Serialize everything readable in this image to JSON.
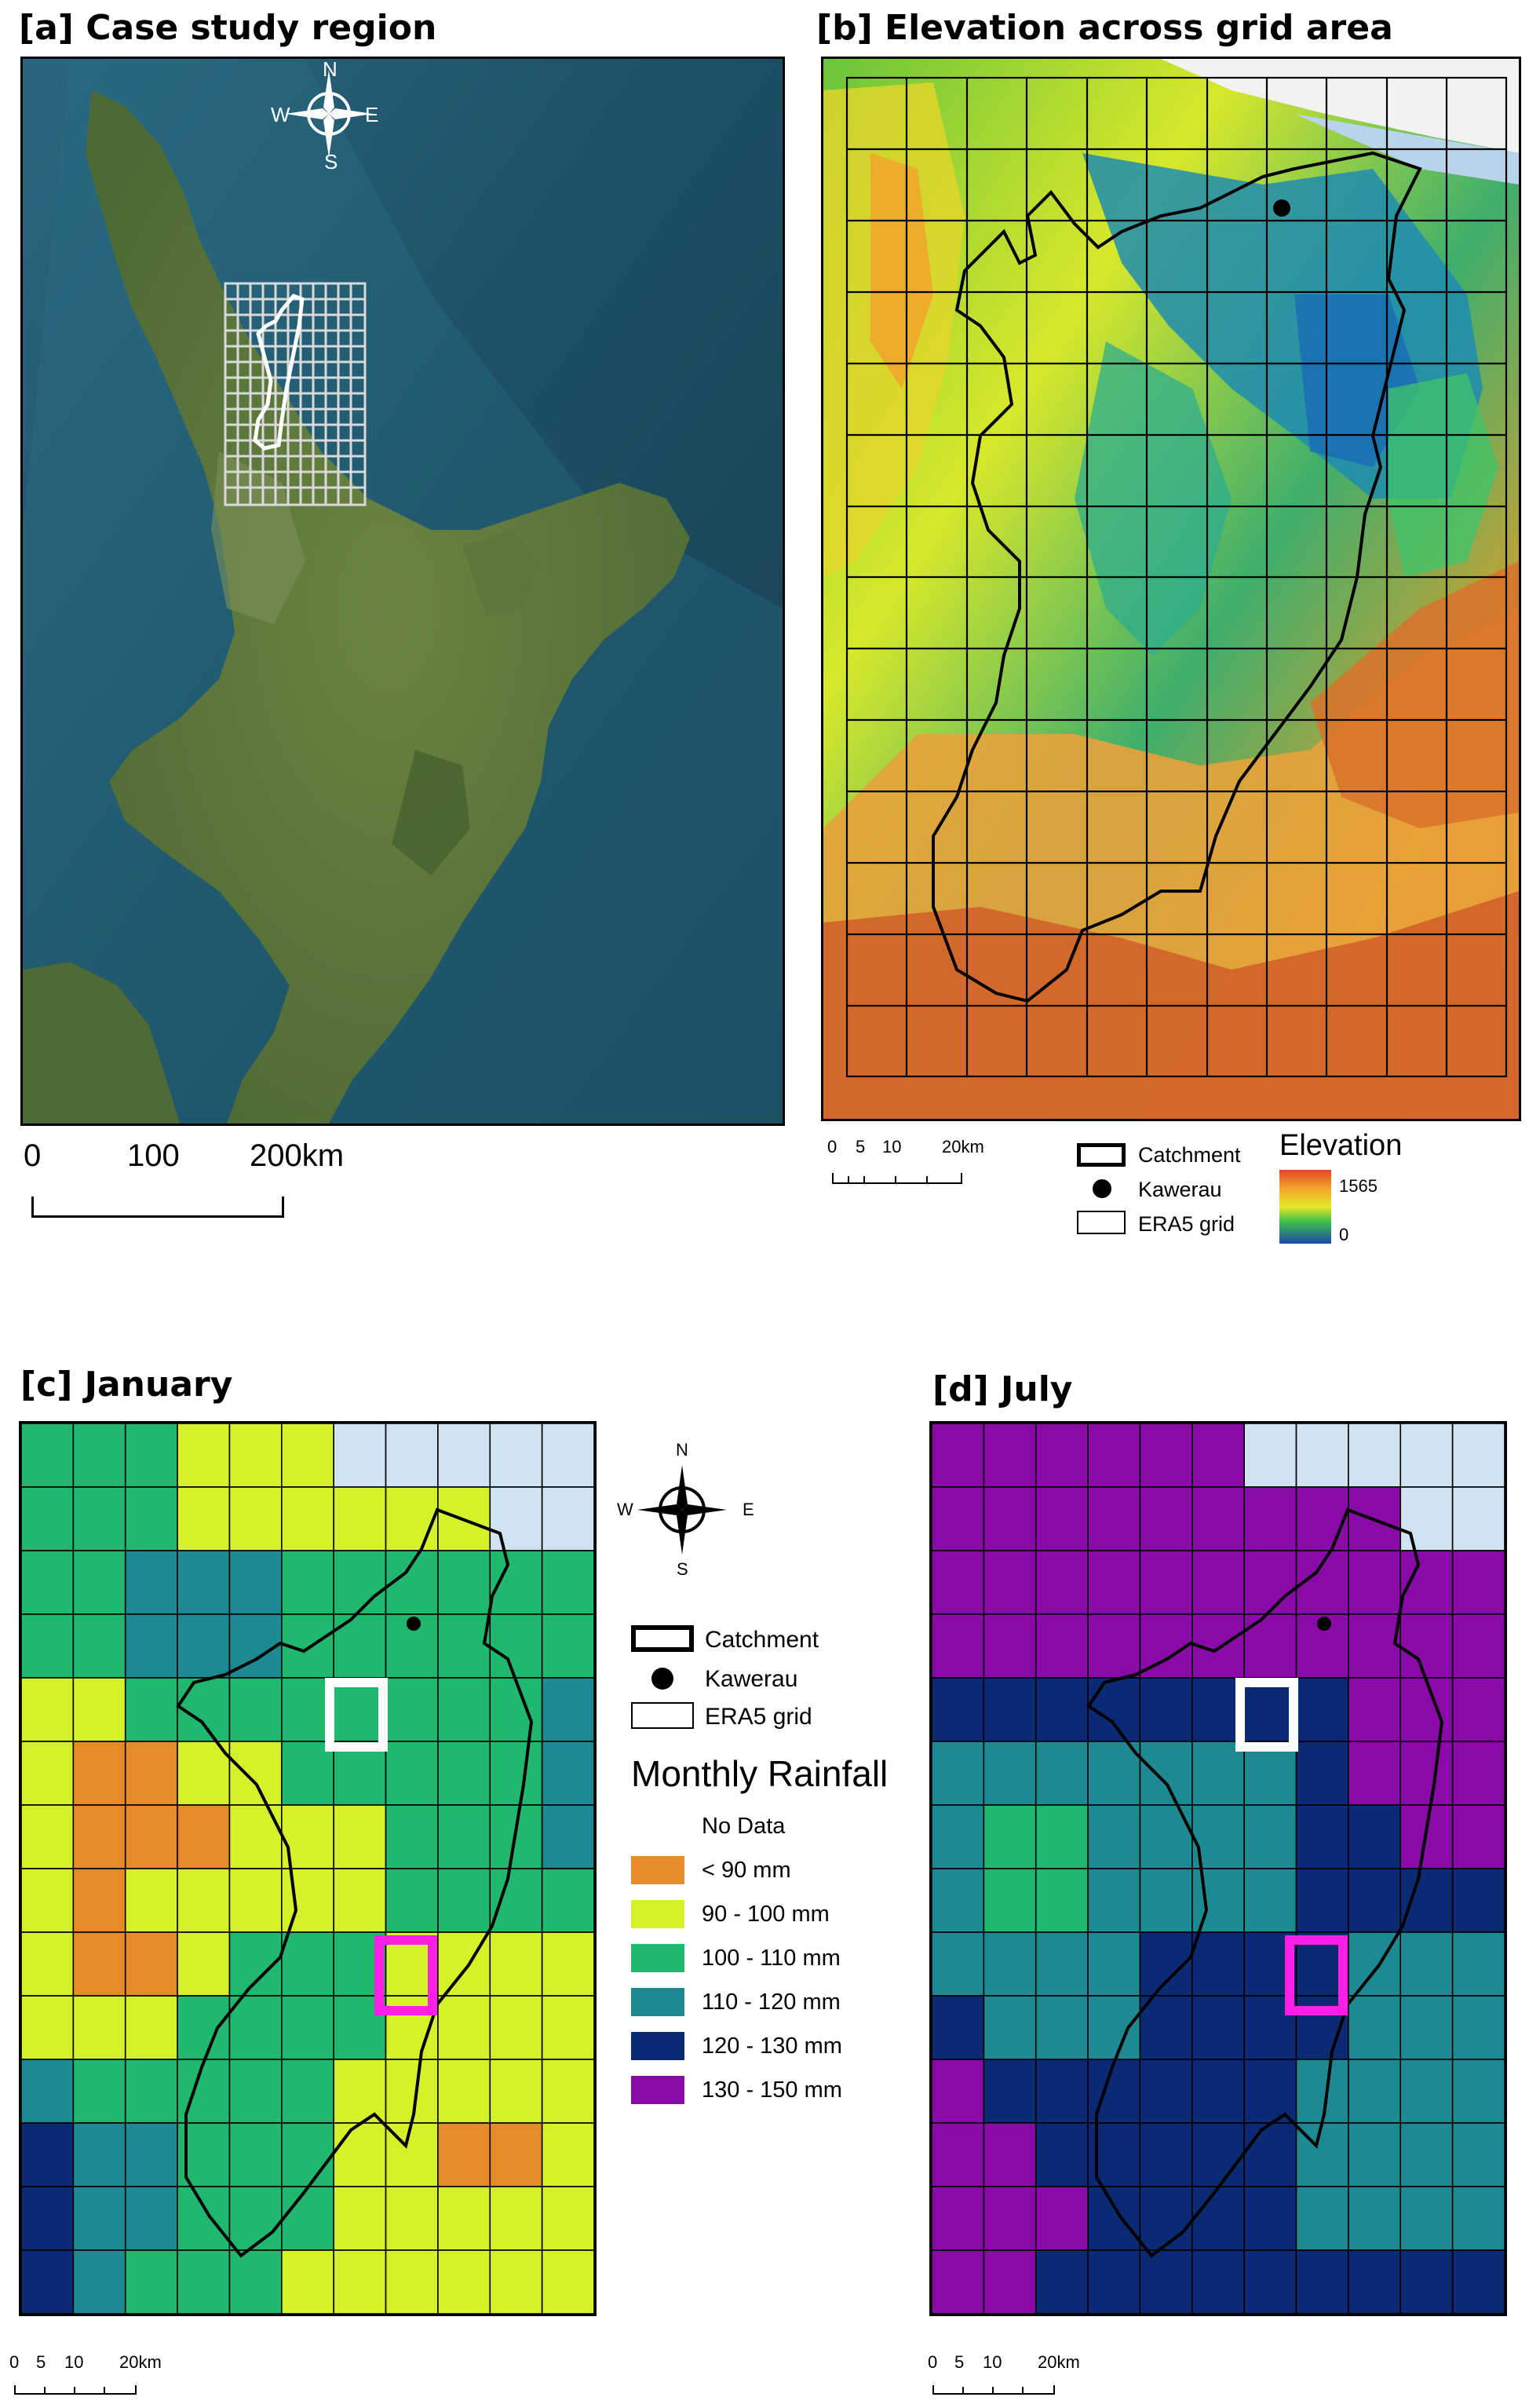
{
  "panels": {
    "a": {
      "title": "[a] Case study region"
    },
    "b": {
      "title": "[b] Elevation across grid area"
    },
    "c": {
      "title": "[c] January"
    },
    "d": {
      "title": "[d] July"
    }
  },
  "compass": {
    "n": "N",
    "s": "S",
    "e": "E",
    "w": "W"
  },
  "scalebar_a": {
    "ticks": [
      "0",
      "100",
      "200km"
    ]
  },
  "scalebar_small": {
    "ticks": [
      "0",
      "5",
      "10",
      "20km"
    ]
  },
  "legend": {
    "catchment": "Catchment",
    "kawerau": "Kawerau",
    "grid": "ERA5 grid",
    "elevation_title": "Elevation",
    "elevation_max": "1565",
    "elevation_min": "0",
    "rainfall_title": "Monthly Rainfall",
    "classes": [
      {
        "label": "No Data",
        "color": "#ffffff"
      },
      {
        "label": "< 90 mm",
        "color": "#e68a2a"
      },
      {
        "label": "90 - 100 mm",
        "color": "#d4f12a"
      },
      {
        "label": "100 - 110 mm",
        "color": "#1fb86e"
      },
      {
        "label": "110 - 120 mm",
        "color": "#1d8a93"
      },
      {
        "label": "120 - 130 mm",
        "color": "#0a2a73"
      },
      {
        "label": "130 - 150 mm",
        "color": "#8a0aa8"
      }
    ]
  },
  "colors": {
    "ocean": "#1f4f63",
    "land": "#5f7a3c",
    "catchment_outline": "#000000",
    "focus_box_1": "#ffffff",
    "focus_box_2": "#ff1ee6"
  },
  "grids": {
    "january": [
      [
        "g",
        "g",
        "g",
        "y",
        "y",
        "y",
        "n",
        "n",
        "n",
        "n",
        "n"
      ],
      [
        "g",
        "g",
        "g",
        "y",
        "y",
        "y",
        "y",
        "y",
        "y",
        "n",
        "n"
      ],
      [
        "g",
        "g",
        "t",
        "t",
        "t",
        "g",
        "g",
        "g",
        "g",
        "g",
        "g"
      ],
      [
        "g",
        "g",
        "t",
        "t",
        "t",
        "g",
        "g",
        "g",
        "g",
        "g",
        "g"
      ],
      [
        "y",
        "y",
        "g",
        "g",
        "g",
        "g",
        "g",
        "g",
        "g",
        "g",
        "t"
      ],
      [
        "y",
        "o",
        "o",
        "y",
        "y",
        "g",
        "g",
        "g",
        "g",
        "g",
        "t"
      ],
      [
        "y",
        "o",
        "o",
        "o",
        "y",
        "y",
        "y",
        "g",
        "g",
        "g",
        "t"
      ],
      [
        "y",
        "o",
        "y",
        "y",
        "y",
        "y",
        "y",
        "g",
        "g",
        "g",
        "g"
      ],
      [
        "y",
        "o",
        "o",
        "y",
        "g",
        "g",
        "g",
        "y",
        "y",
        "y",
        "y"
      ],
      [
        "y",
        "y",
        "y",
        "g",
        "g",
        "g",
        "g",
        "y",
        "y",
        "y",
        "y"
      ],
      [
        "t",
        "g",
        "g",
        "g",
        "g",
        "g",
        "y",
        "y",
        "y",
        "y",
        "y"
      ],
      [
        "d",
        "t",
        "t",
        "g",
        "g",
        "g",
        "y",
        "y",
        "o",
        "o",
        "y"
      ],
      [
        "d",
        "t",
        "t",
        "g",
        "g",
        "g",
        "y",
        "y",
        "y",
        "y",
        "y"
      ],
      [
        "d",
        "t",
        "g",
        "g",
        "g",
        "y",
        "y",
        "y",
        "y",
        "y",
        "y"
      ]
    ],
    "july": [
      [
        "p",
        "p",
        "p",
        "p",
        "p",
        "p",
        "n",
        "n",
        "n",
        "n",
        "n"
      ],
      [
        "p",
        "p",
        "p",
        "p",
        "p",
        "p",
        "p",
        "p",
        "p",
        "n",
        "n"
      ],
      [
        "p",
        "p",
        "p",
        "p",
        "p",
        "p",
        "p",
        "p",
        "p",
        "p",
        "p"
      ],
      [
        "p",
        "p",
        "p",
        "p",
        "p",
        "p",
        "p",
        "p",
        "p",
        "p",
        "p"
      ],
      [
        "d",
        "d",
        "d",
        "d",
        "d",
        "d",
        "d",
        "d",
        "p",
        "p",
        "p"
      ],
      [
        "t",
        "t",
        "t",
        "t",
        "t",
        "t",
        "t",
        "d",
        "p",
        "p",
        "p"
      ],
      [
        "t",
        "g",
        "g",
        "t",
        "t",
        "t",
        "t",
        "d",
        "d",
        "p",
        "p"
      ],
      [
        "t",
        "g",
        "g",
        "t",
        "t",
        "t",
        "t",
        "d",
        "d",
        "d",
        "d"
      ],
      [
        "t",
        "t",
        "t",
        "t",
        "d",
        "d",
        "d",
        "d",
        "t",
        "t",
        "t"
      ],
      [
        "d",
        "t",
        "t",
        "t",
        "d",
        "d",
        "d",
        "d",
        "t",
        "t",
        "t"
      ],
      [
        "p",
        "d",
        "d",
        "d",
        "d",
        "d",
        "d",
        "t",
        "t",
        "t",
        "t"
      ],
      [
        "p",
        "p",
        "d",
        "d",
        "d",
        "d",
        "d",
        "t",
        "t",
        "t",
        "t"
      ],
      [
        "p",
        "p",
        "p",
        "d",
        "d",
        "d",
        "d",
        "t",
        "t",
        "t",
        "t"
      ],
      [
        "p",
        "p",
        "d",
        "d",
        "d",
        "d",
        "d",
        "d",
        "d",
        "d",
        "d"
      ]
    ]
  }
}
